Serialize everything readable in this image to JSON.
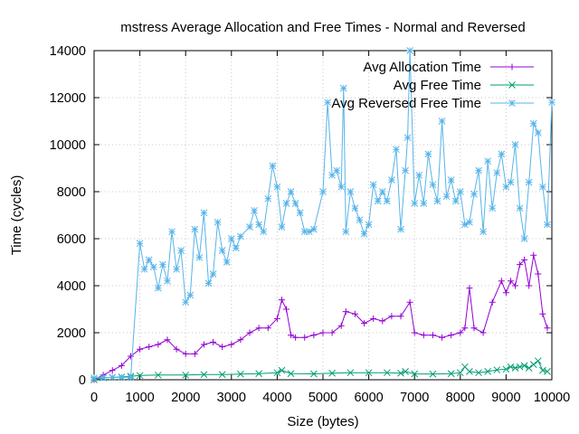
{
  "chart_data": {
    "type": "line",
    "title": "mstress Average Allocation and Free Times - Normal and Reversed",
    "xlabel": "Size (bytes)",
    "ylabel": "Time (cycles)",
    "xlim": [
      0,
      10000
    ],
    "ylim": [
      0,
      14000
    ],
    "x_ticks": [
      "0",
      "1000",
      "2000",
      "3000",
      "4000",
      "5000",
      "6000",
      "7000",
      "8000",
      "9000",
      "10000"
    ],
    "y_ticks": [
      "0",
      "2000",
      "4000",
      "6000",
      "8000",
      "10000",
      "12000",
      "14000"
    ],
    "grid": true,
    "legend_position": "top-right",
    "series": [
      {
        "name": "Avg Allocation Time",
        "color": "#9400d3",
        "marker": "plus",
        "points": [
          [
            0,
            0
          ],
          [
            200,
            200
          ],
          [
            400,
            400
          ],
          [
            600,
            600
          ],
          [
            800,
            1000
          ],
          [
            1000,
            1300
          ],
          [
            1200,
            1400
          ],
          [
            1400,
            1500
          ],
          [
            1600,
            1700
          ],
          [
            1800,
            1300
          ],
          [
            2000,
            1100
          ],
          [
            2200,
            1100
          ],
          [
            2400,
            1500
          ],
          [
            2600,
            1600
          ],
          [
            2800,
            1400
          ],
          [
            3000,
            1500
          ],
          [
            3200,
            1700
          ],
          [
            3400,
            2000
          ],
          [
            3600,
            2200
          ],
          [
            3800,
            2200
          ],
          [
            4000,
            2600
          ],
          [
            4100,
            3400
          ],
          [
            4200,
            3000
          ],
          [
            4300,
            1900
          ],
          [
            4400,
            1800
          ],
          [
            4600,
            1800
          ],
          [
            4800,
            1900
          ],
          [
            5000,
            2000
          ],
          [
            5200,
            2000
          ],
          [
            5400,
            2300
          ],
          [
            5500,
            2900
          ],
          [
            5700,
            2800
          ],
          [
            5900,
            2400
          ],
          [
            6100,
            2600
          ],
          [
            6300,
            2500
          ],
          [
            6500,
            2700
          ],
          [
            6700,
            2700
          ],
          [
            6900,
            3300
          ],
          [
            7000,
            2000
          ],
          [
            7200,
            1900
          ],
          [
            7400,
            1900
          ],
          [
            7600,
            1800
          ],
          [
            7800,
            1900
          ],
          [
            8000,
            2000
          ],
          [
            8100,
            2200
          ],
          [
            8200,
            3900
          ],
          [
            8300,
            2200
          ],
          [
            8500,
            2000
          ],
          [
            8700,
            3300
          ],
          [
            8900,
            4200
          ],
          [
            9000,
            3700
          ],
          [
            9100,
            4200
          ],
          [
            9200,
            4000
          ],
          [
            9300,
            4900
          ],
          [
            9400,
            5100
          ],
          [
            9500,
            4000
          ],
          [
            9600,
            5300
          ],
          [
            9700,
            4500
          ],
          [
            9800,
            2800
          ],
          [
            9900,
            2200
          ]
        ]
      },
      {
        "name": "Avg Free Time",
        "color": "#009e73",
        "marker": "cross",
        "points": [
          [
            0,
            0
          ],
          [
            200,
            80
          ],
          [
            400,
            100
          ],
          [
            600,
            120
          ],
          [
            800,
            150
          ],
          [
            1000,
            180
          ],
          [
            1400,
            200
          ],
          [
            2000,
            200
          ],
          [
            2400,
            220
          ],
          [
            2800,
            220
          ],
          [
            3200,
            240
          ],
          [
            3600,
            260
          ],
          [
            4000,
            300
          ],
          [
            4100,
            400
          ],
          [
            4300,
            260
          ],
          [
            4800,
            250
          ],
          [
            5200,
            280
          ],
          [
            5600,
            300
          ],
          [
            6000,
            300
          ],
          [
            6400,
            300
          ],
          [
            6700,
            280
          ],
          [
            6800,
            350
          ],
          [
            7000,
            250
          ],
          [
            7400,
            240
          ],
          [
            7800,
            260
          ],
          [
            8000,
            300
          ],
          [
            8100,
            550
          ],
          [
            8200,
            350
          ],
          [
            8400,
            300
          ],
          [
            8600,
            350
          ],
          [
            8800,
            420
          ],
          [
            9000,
            450
          ],
          [
            9100,
            550
          ],
          [
            9200,
            500
          ],
          [
            9300,
            550
          ],
          [
            9400,
            600
          ],
          [
            9500,
            500
          ],
          [
            9600,
            650
          ],
          [
            9700,
            800
          ],
          [
            9800,
            400
          ],
          [
            9900,
            350
          ]
        ]
      },
      {
        "name": "Avg Reversed Free Time",
        "color": "#56b4e9",
        "marker": "star",
        "points": [
          [
            0,
            80
          ],
          [
            200,
            90
          ],
          [
            400,
            100
          ],
          [
            600,
            100
          ],
          [
            800,
            110
          ],
          [
            1000,
            5800
          ],
          [
            1100,
            4700
          ],
          [
            1200,
            5100
          ],
          [
            1300,
            4800
          ],
          [
            1400,
            3900
          ],
          [
            1500,
            4900
          ],
          [
            1600,
            4200
          ],
          [
            1700,
            6300
          ],
          [
            1800,
            4700
          ],
          [
            1900,
            5500
          ],
          [
            2000,
            3300
          ],
          [
            2100,
            3600
          ],
          [
            2200,
            6400
          ],
          [
            2300,
            5200
          ],
          [
            2400,
            7100
          ],
          [
            2500,
            4100
          ],
          [
            2600,
            4500
          ],
          [
            2700,
            6700
          ],
          [
            2800,
            5500
          ],
          [
            2900,
            5000
          ],
          [
            3000,
            6000
          ],
          [
            3100,
            5600
          ],
          [
            3200,
            6100
          ],
          [
            3400,
            6500
          ],
          [
            3500,
            7200
          ],
          [
            3600,
            6600
          ],
          [
            3700,
            6300
          ],
          [
            3800,
            7700
          ],
          [
            3900,
            9100
          ],
          [
            4000,
            8200
          ],
          [
            4100,
            6500
          ],
          [
            4200,
            7500
          ],
          [
            4300,
            8000
          ],
          [
            4400,
            7500
          ],
          [
            4500,
            7100
          ],
          [
            4600,
            6300
          ],
          [
            4700,
            6300
          ],
          [
            4800,
            6400
          ],
          [
            5000,
            8000
          ],
          [
            5100,
            11800
          ],
          [
            5200,
            8700
          ],
          [
            5300,
            8900
          ],
          [
            5400,
            8200
          ],
          [
            5450,
            12400
          ],
          [
            5500,
            6300
          ],
          [
            5600,
            8000
          ],
          [
            5700,
            7300
          ],
          [
            5800,
            6800
          ],
          [
            5900,
            6200
          ],
          [
            6000,
            6600
          ],
          [
            6100,
            8300
          ],
          [
            6200,
            7600
          ],
          [
            6300,
            8000
          ],
          [
            6400,
            7600
          ],
          [
            6500,
            8500
          ],
          [
            6600,
            9800
          ],
          [
            6700,
            6400
          ],
          [
            6800,
            8900
          ],
          [
            6850,
            10300
          ],
          [
            6900,
            14000
          ],
          [
            7000,
            7500
          ],
          [
            7100,
            8700
          ],
          [
            7200,
            7500
          ],
          [
            7300,
            9600
          ],
          [
            7400,
            8300
          ],
          [
            7500,
            7600
          ],
          [
            7600,
            11000
          ],
          [
            7700,
            7800
          ],
          [
            7800,
            8500
          ],
          [
            7900,
            7600
          ],
          [
            8000,
            8000
          ],
          [
            8100,
            6600
          ],
          [
            8200,
            6700
          ],
          [
            8300,
            7900
          ],
          [
            8400,
            8900
          ],
          [
            8500,
            6300
          ],
          [
            8600,
            9300
          ],
          [
            8700,
            7300
          ],
          [
            8800,
            8800
          ],
          [
            8900,
            9600
          ],
          [
            9000,
            8200
          ],
          [
            9100,
            8400
          ],
          [
            9200,
            10000
          ],
          [
            9300,
            7300
          ],
          [
            9400,
            6000
          ],
          [
            9500,
            8400
          ],
          [
            9600,
            10900
          ],
          [
            9700,
            10500
          ],
          [
            9800,
            8200
          ],
          [
            9900,
            6600
          ],
          [
            10000,
            11800
          ]
        ]
      }
    ]
  }
}
